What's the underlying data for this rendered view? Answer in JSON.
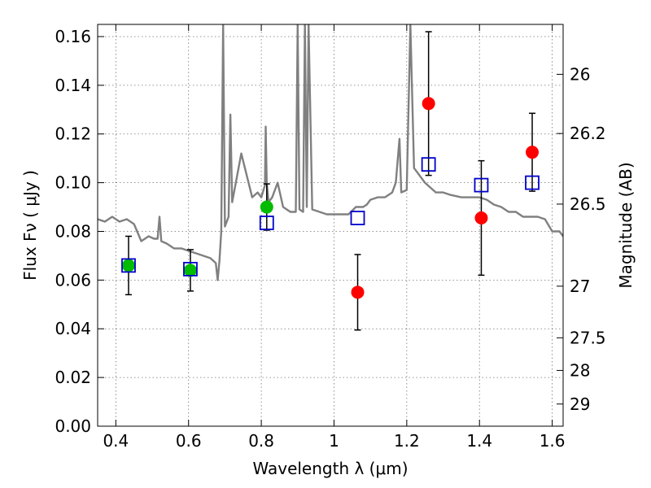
{
  "chart_data": {
    "type": "scatter",
    "xlabel": "Wavelength  λ (μm)",
    "ylabel": "Flux  Fν  ( μJy )",
    "y2label": "Magnitude (AB)",
    "xlim": [
      0.35,
      1.63
    ],
    "ylim": [
      0.0,
      0.165
    ],
    "xticks": [
      0.4,
      0.6,
      0.8,
      1.0,
      1.2,
      1.4,
      1.6
    ],
    "xtick_labels": [
      "0.4",
      "0.6",
      "0.8",
      "1",
      "1.2",
      "1.4",
      "1.6"
    ],
    "yticks": [
      0.0,
      0.02,
      0.04,
      0.06,
      0.08,
      0.1,
      0.12,
      0.14,
      0.16
    ],
    "ytick_labels": [
      "0.00",
      "0.02",
      "0.04",
      "0.06",
      "0.08",
      "0.10",
      "0.12",
      "0.14",
      "0.16"
    ],
    "y2ticks": [
      {
        "flux": 0.1445,
        "label": "26"
      },
      {
        "flux": 0.1202,
        "label": "26.2"
      },
      {
        "flux": 0.0912,
        "label": "26.5"
      },
      {
        "flux": 0.0575,
        "label": "27"
      },
      {
        "flux": 0.0363,
        "label": "27.5"
      },
      {
        "flux": 0.0229,
        "label": "28"
      },
      {
        "flux": 0.0091,
        "label": "29"
      }
    ],
    "grid": true,
    "colors": {
      "spectrum": "#808080",
      "green_points": "#00bb00",
      "red_points": "#ff0000",
      "model_boxes": "#0000cc",
      "errorbars": "#000000"
    },
    "series": [
      {
        "kind": "line",
        "points": [
          [
            0.35,
            0.085
          ],
          [
            0.37,
            0.084
          ],
          [
            0.39,
            0.086
          ],
          [
            0.41,
            0.084
          ],
          [
            0.43,
            0.085
          ],
          [
            0.45,
            0.083
          ],
          [
            0.47,
            0.076
          ],
          [
            0.49,
            0.078
          ],
          [
            0.505,
            0.077
          ],
          [
            0.515,
            0.077
          ],
          [
            0.52,
            0.086
          ],
          [
            0.525,
            0.076
          ],
          [
            0.54,
            0.075
          ],
          [
            0.56,
            0.073
          ],
          [
            0.58,
            0.073
          ],
          [
            0.6,
            0.072
          ],
          [
            0.62,
            0.071
          ],
          [
            0.64,
            0.07
          ],
          [
            0.66,
            0.069
          ],
          [
            0.675,
            0.067
          ],
          [
            0.68,
            0.06
          ],
          [
            0.685,
            0.068
          ],
          [
            0.69,
            0.08
          ],
          [
            0.695,
            0.165
          ],
          [
            0.7,
            0.082
          ],
          [
            0.71,
            0.086
          ],
          [
            0.715,
            0.128
          ],
          [
            0.72,
            0.092
          ],
          [
            0.73,
            0.1
          ],
          [
            0.745,
            0.112
          ],
          [
            0.76,
            0.103
          ],
          [
            0.775,
            0.094
          ],
          [
            0.79,
            0.096
          ],
          [
            0.8,
            0.094
          ],
          [
            0.81,
            0.099
          ],
          [
            0.812,
            0.123
          ],
          [
            0.815,
            0.1
          ],
          [
            0.82,
            0.092
          ],
          [
            0.83,
            0.094
          ],
          [
            0.845,
            0.1
          ],
          [
            0.86,
            0.09
          ],
          [
            0.88,
            0.088
          ],
          [
            0.895,
            0.088
          ],
          [
            0.9,
            0.165
          ],
          [
            0.905,
            0.089
          ],
          [
            0.915,
            0.088
          ],
          [
            0.92,
            0.165
          ],
          [
            0.925,
            0.09
          ],
          [
            0.93,
            0.165
          ],
          [
            0.94,
            0.089
          ],
          [
            0.96,
            0.088
          ],
          [
            0.98,
            0.087
          ],
          [
            1.0,
            0.087
          ],
          [
            1.02,
            0.087
          ],
          [
            1.04,
            0.087
          ],
          [
            1.06,
            0.09
          ],
          [
            1.08,
            0.09
          ],
          [
            1.09,
            0.091
          ],
          [
            1.1,
            0.093
          ],
          [
            1.12,
            0.094
          ],
          [
            1.14,
            0.094
          ],
          [
            1.16,
            0.096
          ],
          [
            1.17,
            0.1
          ],
          [
            1.18,
            0.118
          ],
          [
            1.185,
            0.096
          ],
          [
            1.2,
            0.097
          ],
          [
            1.21,
            0.165
          ],
          [
            1.22,
            0.106
          ],
          [
            1.25,
            0.1
          ],
          [
            1.28,
            0.096
          ],
          [
            1.3,
            0.096
          ],
          [
            1.32,
            0.095
          ],
          [
            1.35,
            0.094
          ],
          [
            1.38,
            0.094
          ],
          [
            1.4,
            0.094
          ],
          [
            1.42,
            0.093
          ],
          [
            1.44,
            0.091
          ],
          [
            1.46,
            0.09
          ],
          [
            1.48,
            0.088
          ],
          [
            1.5,
            0.088
          ],
          [
            1.52,
            0.086
          ],
          [
            1.54,
            0.086
          ],
          [
            1.56,
            0.086
          ],
          [
            1.58,
            0.085
          ],
          [
            1.6,
            0.08
          ],
          [
            1.62,
            0.08
          ],
          [
            1.63,
            0.078
          ]
        ]
      },
      {
        "kind": "points",
        "marker": "circle",
        "points": [
          {
            "x": 0.435,
            "y": 0.066,
            "yerr": 0.012
          },
          {
            "x": 0.605,
            "y": 0.064,
            "yerr": 0.0085
          },
          {
            "x": 0.815,
            "y": 0.09,
            "yerr": 0.0095
          }
        ]
      },
      {
        "kind": "points",
        "marker": "circle",
        "points": [
          {
            "x": 1.065,
            "y": 0.055,
            "yerr": 0.0155
          },
          {
            "x": 1.26,
            "y": 0.1325,
            "yerr": 0.0295
          },
          {
            "x": 1.405,
            "y": 0.0855,
            "yerr": 0.0235
          },
          {
            "x": 1.545,
            "y": 0.1125,
            "yerr": 0.016
          }
        ]
      },
      {
        "kind": "points",
        "marker": "open-square",
        "points": [
          {
            "x": 0.435,
            "y": 0.066
          },
          {
            "x": 0.605,
            "y": 0.0645
          },
          {
            "x": 0.815,
            "y": 0.0835
          },
          {
            "x": 1.065,
            "y": 0.0855
          },
          {
            "x": 1.26,
            "y": 0.1075
          },
          {
            "x": 1.405,
            "y": 0.099
          },
          {
            "x": 1.545,
            "y": 0.1
          }
        ]
      }
    ]
  }
}
